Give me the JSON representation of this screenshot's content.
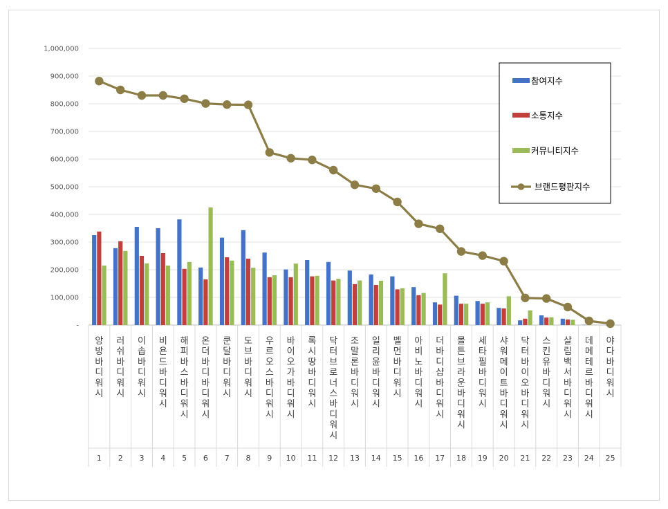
{
  "chart_data": {
    "type": "bar",
    "title": "",
    "xlabel": "",
    "ylabel": "",
    "ylim": [
      0,
      1000000
    ],
    "y_ticks": [
      0,
      100000,
      200000,
      300000,
      400000,
      500000,
      600000,
      700000,
      800000,
      900000,
      1000000
    ],
    "y_tick_labels": [
      "-",
      "100,000",
      "200,000",
      "300,000",
      "400,000",
      "500,000",
      "600,000",
      "700,000",
      "800,000",
      "900,000",
      "1,000,000"
    ],
    "grid": true,
    "legend_position": "top-right",
    "categories": [
      "앙방바디워시",
      "러쉬바디워시",
      "이솝바디워시",
      "비욘드바디워시",
      "해피바스바디워시",
      "온더바디바디워시",
      "쿤달바디워시",
      "도브바디워시",
      "우르오스바디워시",
      "바이오가바디워시",
      "록시땅바디워시",
      "닥터브로너스바디워시",
      "조말론바디워시",
      "일리윤바디워시",
      "벨먼바디워시",
      "아비노바디워시",
      "더바디샵바디워시",
      "몰튼브라운바디워시",
      "세타필바디워시",
      "샤워메이트바디워시",
      "닥터바이오바디워시",
      "스킨유바디워시",
      "살림백서바디워시",
      "데메테르바디워시",
      "야다바디워시"
    ],
    "ranks": [
      "1",
      "2",
      "3",
      "4",
      "5",
      "6",
      "7",
      "8",
      "9",
      "10",
      "11",
      "12",
      "13",
      "14",
      "15",
      "16",
      "17",
      "18",
      "19",
      "20",
      "21",
      "22",
      "23",
      "24",
      "25"
    ],
    "series": [
      {
        "name": "참여지수",
        "kind": "bar",
        "color": "#4472C4",
        "values": [
          325000,
          278000,
          355000,
          350000,
          382000,
          208000,
          316000,
          343000,
          262000,
          201000,
          235000,
          228000,
          197000,
          183000,
          176000,
          137000,
          82000,
          106000,
          87000,
          62000,
          17000,
          35000,
          23000,
          1000,
          0
        ]
      },
      {
        "name": "소통지수",
        "kind": "bar",
        "color": "#C0403E",
        "values": [
          338000,
          303000,
          250000,
          260000,
          203000,
          165000,
          245000,
          240000,
          173000,
          173000,
          176000,
          161000,
          148000,
          145000,
          129000,
          108000,
          74000,
          77000,
          77000,
          60000,
          23000,
          27000,
          20000,
          500,
          0
        ]
      },
      {
        "name": "커뮤니티지수",
        "kind": "bar",
        "color": "#9BBB59",
        "values": [
          215000,
          268000,
          223000,
          215000,
          228000,
          425000,
          233000,
          207000,
          180000,
          222000,
          178000,
          167000,
          161000,
          160000,
          133000,
          116000,
          187000,
          77000,
          82000,
          104000,
          53000,
          28000,
          19000,
          500,
          0
        ]
      },
      {
        "name": "브랜드평판지수",
        "kind": "line",
        "color": "#8B7D45",
        "values": [
          882000,
          850000,
          830000,
          830000,
          818000,
          801000,
          797000,
          796000,
          624000,
          603000,
          597000,
          560000,
          507000,
          493000,
          445000,
          366000,
          348000,
          266000,
          251000,
          231000,
          98000,
          96000,
          65000,
          15000,
          5000
        ]
      }
    ]
  }
}
